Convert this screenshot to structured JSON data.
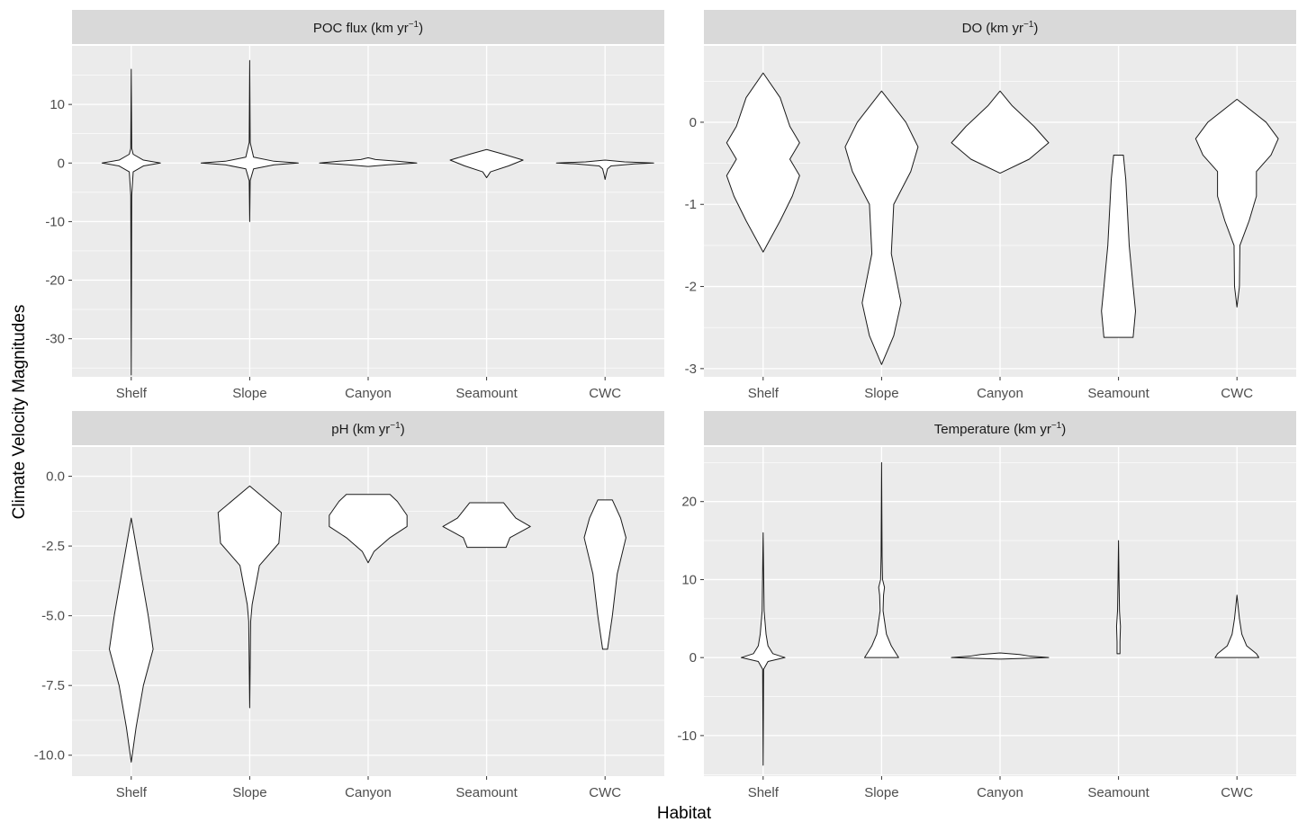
{
  "figure": {
    "xlabel": "Habitat",
    "ylabel": "Climate Velocity Magnitudes",
    "colors": {
      "panel_bg": "#ebebeb",
      "strip_bg": "#d9d9d9",
      "grid": "#ffffff",
      "violin_fill": "#ffffff",
      "violin_stroke": "#1a1a1a",
      "tick_text": "#4d4d4d"
    }
  },
  "chart_data": [
    {
      "type": "violin",
      "title_main": "POC flux (km yr",
      "title_sup": "−1",
      "title_end": ")",
      "categories": [
        "Shelf",
        "Slope",
        "Canyon",
        "Seamount",
        "CWC"
      ],
      "ylim": [
        -36.5,
        20
      ],
      "yticks": [
        10,
        0,
        -10,
        -20,
        -30
      ],
      "ytick_labels": [
        "10",
        "0",
        "-10",
        "-20",
        "-30"
      ],
      "series": [
        {
          "category": "Shelf",
          "profile": [
            [
              -36.2,
              0
            ],
            [
              -5.5,
              0.01
            ],
            [
              -1.5,
              0.04
            ],
            [
              -0.5,
              0.25
            ],
            [
              0,
              0.6
            ],
            [
              0.5,
              0.25
            ],
            [
              1.5,
              0.04
            ],
            [
              2.5,
              0.01
            ],
            [
              16,
              0
            ]
          ]
        },
        {
          "category": "Slope",
          "profile": [
            [
              -10,
              0
            ],
            [
              -3,
              0.01
            ],
            [
              -1,
              0.08
            ],
            [
              -0.3,
              0.5
            ],
            [
              0,
              1.0
            ],
            [
              0.3,
              0.5
            ],
            [
              1,
              0.08
            ],
            [
              3.5,
              0.01
            ],
            [
              17.5,
              0
            ]
          ]
        },
        {
          "category": "Canyon",
          "profile": [
            [
              -0.6,
              0
            ],
            [
              -0.3,
              0.4
            ],
            [
              0,
              1.0
            ],
            [
              0.3,
              0.6
            ],
            [
              0.6,
              0.15
            ],
            [
              0.9,
              0
            ]
          ]
        },
        {
          "category": "Seamount",
          "profile": [
            [
              -2.5,
              0
            ],
            [
              -1.5,
              0.08
            ],
            [
              -0.5,
              0.45
            ],
            [
              0.5,
              0.75
            ],
            [
              1.5,
              0.35
            ],
            [
              2.3,
              0
            ]
          ]
        },
        {
          "category": "CWC",
          "profile": [
            [
              -2.8,
              0
            ],
            [
              -2,
              0.02
            ],
            [
              -1,
              0.05
            ],
            [
              -0.5,
              0.12
            ],
            [
              -0.15,
              0.6
            ],
            [
              0,
              1.0
            ],
            [
              0.2,
              0.4
            ],
            [
              0.5,
              0
            ]
          ]
        }
      ]
    },
    {
      "type": "violin",
      "title_main": "DO (km yr",
      "title_sup": "−1",
      "title_end": ")",
      "categories": [
        "Shelf",
        "Slope",
        "Canyon",
        "Seamount",
        "CWC"
      ],
      "ylim": [
        -3.1,
        0.93
      ],
      "yticks": [
        0,
        -1,
        -2,
        -3
      ],
      "ytick_labels": [
        "0",
        "-1",
        "-2",
        "-3"
      ],
      "series": [
        {
          "category": "Shelf",
          "profile": [
            [
              -1.58,
              0
            ],
            [
              -1.2,
              0.35
            ],
            [
              -0.9,
              0.6
            ],
            [
              -0.65,
              0.75
            ],
            [
              -0.45,
              0.55
            ],
            [
              -0.25,
              0.75
            ],
            [
              -0.05,
              0.55
            ],
            [
              0.3,
              0.35
            ],
            [
              0.6,
              0
            ]
          ]
        },
        {
          "category": "Slope",
          "profile": [
            [
              -2.95,
              0
            ],
            [
              -2.6,
              0.25
            ],
            [
              -2.2,
              0.4
            ],
            [
              -1.6,
              0.2
            ],
            [
              -1.0,
              0.25
            ],
            [
              -0.6,
              0.6
            ],
            [
              -0.3,
              0.75
            ],
            [
              0,
              0.5
            ],
            [
              0.38,
              0
            ]
          ]
        },
        {
          "category": "Canyon",
          "profile": [
            [
              -0.62,
              0
            ],
            [
              -0.45,
              0.6
            ],
            [
              -0.25,
              1.0
            ],
            [
              -0.05,
              0.7
            ],
            [
              0.2,
              0.25
            ],
            [
              0.38,
              0
            ]
          ]
        },
        {
          "category": "Seamount",
          "profile": [
            [
              -2.62,
              0
            ],
            [
              -2.62,
              0.3
            ],
            [
              -2.3,
              0.35
            ],
            [
              -2.0,
              0.3
            ],
            [
              -1.5,
              0.22
            ],
            [
              -0.7,
              0.15
            ],
            [
              -0.4,
              0.1
            ],
            [
              -0.4,
              0
            ]
          ]
        },
        {
          "category": "CWC",
          "profile": [
            [
              -2.25,
              0
            ],
            [
              -2.0,
              0.05
            ],
            [
              -1.5,
              0.06
            ],
            [
              -1.2,
              0.25
            ],
            [
              -0.9,
              0.4
            ],
            [
              -0.6,
              0.4
            ],
            [
              -0.4,
              0.7
            ],
            [
              -0.2,
              0.85
            ],
            [
              0,
              0.6
            ],
            [
              0.28,
              0
            ]
          ]
        }
      ]
    },
    {
      "type": "violin",
      "title_main": "pH (km yr",
      "title_sup": "−1",
      "title_end": ")",
      "categories": [
        "Shelf",
        "Slope",
        "Canyon",
        "Seamount",
        "CWC"
      ],
      "ylim": [
        -10.75,
        1.05
      ],
      "yticks": [
        0,
        -2.5,
        -5,
        -7.5,
        -10
      ],
      "ytick_labels": [
        "0.0",
        "-2.5",
        "-5.0",
        "-7.5",
        "-10.0"
      ],
      "series": [
        {
          "category": "Shelf",
          "profile": [
            [
              -10.25,
              0
            ],
            [
              -9.0,
              0.1
            ],
            [
              -7.5,
              0.25
            ],
            [
              -6.2,
              0.45
            ],
            [
              -5.0,
              0.35
            ],
            [
              -3.0,
              0.15
            ],
            [
              -1.5,
              0
            ]
          ]
        },
        {
          "category": "Slope",
          "profile": [
            [
              -8.3,
              0
            ],
            [
              -5.2,
              0.02
            ],
            [
              -4.6,
              0.05
            ],
            [
              -3.2,
              0.2
            ],
            [
              -2.4,
              0.6
            ],
            [
              -1.3,
              0.65
            ],
            [
              -0.35,
              0
            ]
          ]
        },
        {
          "category": "Canyon",
          "profile": [
            [
              -3.1,
              0
            ],
            [
              -2.7,
              0.12
            ],
            [
              -2.2,
              0.45
            ],
            [
              -1.8,
              0.8
            ],
            [
              -1.4,
              0.8
            ],
            [
              -0.9,
              0.6
            ],
            [
              -0.65,
              0.45
            ],
            [
              -0.65,
              0
            ]
          ]
        },
        {
          "category": "Seamount",
          "profile": [
            [
              -2.55,
              0
            ],
            [
              -2.55,
              0.4
            ],
            [
              -2.2,
              0.48
            ],
            [
              -1.8,
              0.9
            ],
            [
              -1.5,
              0.6
            ],
            [
              -0.95,
              0.35
            ],
            [
              -0.95,
              0
            ]
          ]
        },
        {
          "category": "CWC",
          "profile": [
            [
              -6.2,
              0
            ],
            [
              -6.2,
              0.05
            ],
            [
              -5.0,
              0.15
            ],
            [
              -3.5,
              0.25
            ],
            [
              -2.2,
              0.43
            ],
            [
              -1.5,
              0.32
            ],
            [
              -0.85,
              0.15
            ],
            [
              -0.85,
              0
            ]
          ]
        }
      ]
    },
    {
      "type": "violin",
      "title_main": "Temperature (km yr",
      "title_sup": "−1",
      "title_end": ")",
      "categories": [
        "Shelf",
        "Slope",
        "Canyon",
        "Seamount",
        "CWC"
      ],
      "ylim": [
        -15.2,
        27
      ],
      "yticks": [
        20,
        10,
        0,
        -10
      ],
      "ytick_labels": [
        "20",
        "10",
        "0",
        "-10"
      ],
      "series": [
        {
          "category": "Shelf",
          "profile": [
            [
              -13.8,
              0
            ],
            [
              -1.5,
              0.01
            ],
            [
              -0.5,
              0.1
            ],
            [
              0,
              0.45
            ],
            [
              0.5,
              0.2
            ],
            [
              1.5,
              0.1
            ],
            [
              3,
              0.06
            ],
            [
              6,
              0.02
            ],
            [
              16,
              0
            ]
          ]
        },
        {
          "category": "Slope",
          "profile": [
            [
              0,
              0
            ],
            [
              0,
              0.35
            ],
            [
              0.5,
              0.3
            ],
            [
              1.5,
              0.2
            ],
            [
              3,
              0.1
            ],
            [
              6,
              0.03
            ],
            [
              8,
              0.04
            ],
            [
              9,
              0.06
            ],
            [
              10,
              0.02
            ],
            [
              13,
              0.01
            ],
            [
              25,
              0
            ]
          ]
        },
        {
          "category": "Canyon",
          "profile": [
            [
              -0.2,
              0
            ],
            [
              0,
              1.0
            ],
            [
              0.2,
              0.6
            ],
            [
              0.4,
              0.4
            ],
            [
              0.6,
              0
            ]
          ]
        },
        {
          "category": "Seamount",
          "profile": [
            [
              0.5,
              0
            ],
            [
              0.5,
              0.03
            ],
            [
              2,
              0.03
            ],
            [
              4,
              0.04
            ],
            [
              6,
              0.02
            ],
            [
              10,
              0.01
            ],
            [
              15,
              0
            ]
          ]
        },
        {
          "category": "CWC",
          "profile": [
            [
              0,
              0
            ],
            [
              0,
              0.45
            ],
            [
              0.5,
              0.4
            ],
            [
              1.5,
              0.2
            ],
            [
              3,
              0.1
            ],
            [
              5,
              0.05
            ],
            [
              8,
              0
            ]
          ]
        }
      ]
    }
  ]
}
